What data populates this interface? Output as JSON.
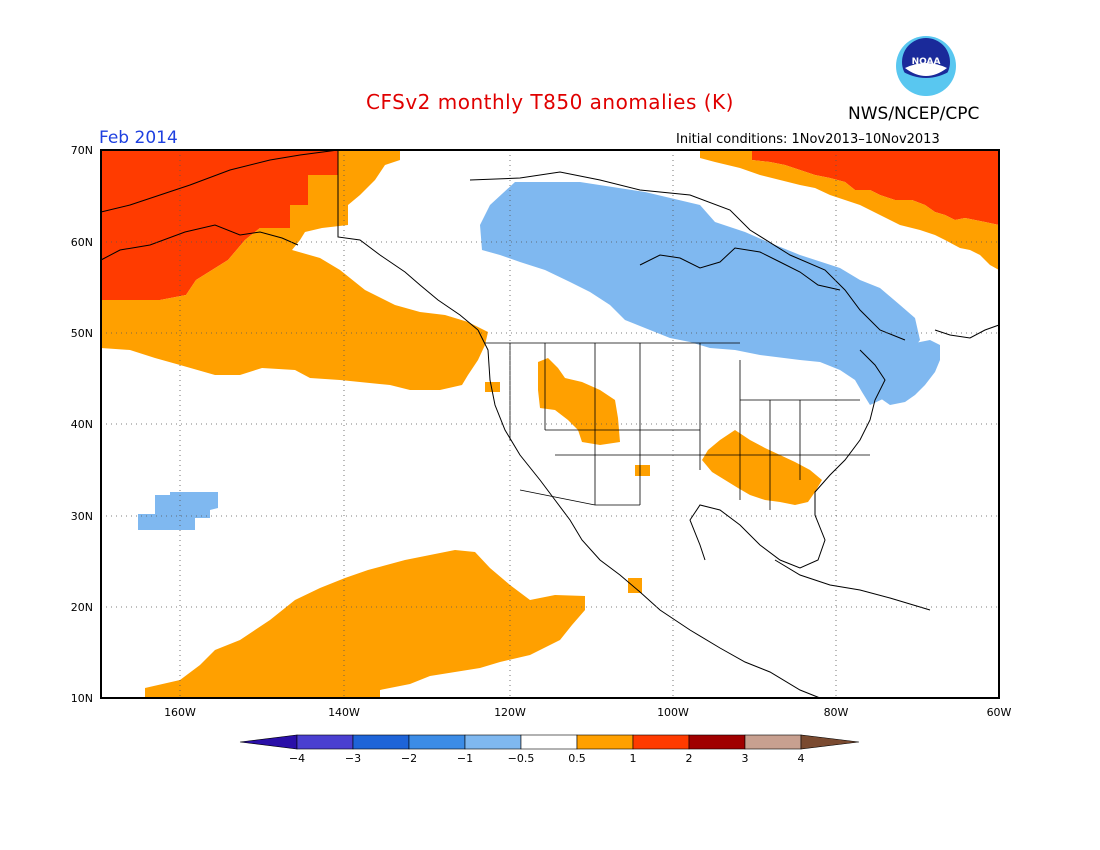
{
  "header": {
    "title": "CFSv2 monthly T850 anomalies (K)",
    "month": "Feb 2014",
    "org": "NWS/NCEP/CPC",
    "initial_conditions": "Initial conditions: 1Nov2013–10Nov2013",
    "logo_text": "NOAA"
  },
  "map": {
    "lon_labels": [
      "160W",
      "140W",
      "120W",
      "100W",
      "80W",
      "60W"
    ],
    "lat_labels": [
      "70N",
      "60N",
      "50N",
      "40N",
      "30N",
      "20N",
      "10N"
    ],
    "lon_range": [
      -172,
      -60
    ],
    "lat_range": [
      10,
      70
    ]
  },
  "colorbar": {
    "labels": [
      "−4",
      "−3",
      "−2",
      "−1",
      "−0.5",
      "0.5",
      "1",
      "2",
      "3",
      "4"
    ],
    "colors": [
      "#2a0fa8",
      "#4a3fd0",
      "#1e64d8",
      "#3c8ce6",
      "#7fb8f0",
      "#ffffff",
      "#ffa000",
      "#ff3b00",
      "#a00000",
      "#c8a090",
      "#7a4a30"
    ]
  },
  "colors": {
    "warm": "#ffa000",
    "hot": "#ff3b00",
    "cool": "#7fb8f0",
    "coolDark": "#3c8ce6"
  }
}
